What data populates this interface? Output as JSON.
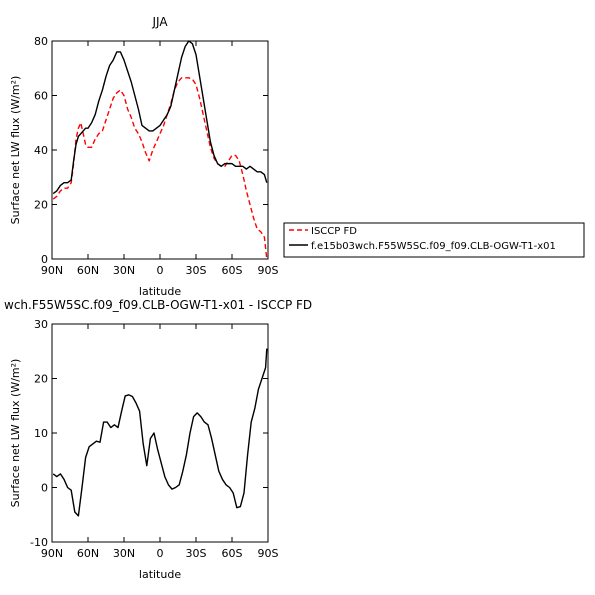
{
  "chart_data": [
    {
      "type": "line",
      "title": "JJA",
      "xlabel": "latitude",
      "ylabel": "Surface net LW flux (W/m²)",
      "xlim": [
        90,
        -90
      ],
      "ylim": [
        0,
        80
      ],
      "xticks": [
        90,
        60,
        30,
        0,
        -30,
        -60,
        -90
      ],
      "xtick_labels": [
        "90N",
        "60N",
        "30N",
        "0",
        "30S",
        "60S",
        "90S"
      ],
      "yticks": [
        0,
        20,
        40,
        60,
        80
      ],
      "legend": "right",
      "series": [
        {
          "name": "ISCCP FD",
          "color": "#ff0000",
          "dash": true,
          "x": [
            89,
            86,
            83,
            80,
            77,
            74,
            72,
            70,
            68,
            66,
            64,
            62,
            60,
            57,
            54,
            51,
            48,
            45,
            42,
            39,
            36,
            33,
            30,
            27,
            24,
            21,
            18,
            15,
            12,
            9,
            6,
            3,
            0,
            -3,
            -6,
            -9,
            -12,
            -15,
            -18,
            -21,
            -24,
            -27,
            -30,
            -33,
            -36,
            -39,
            -42,
            -45,
            -48,
            -51,
            -54,
            -57,
            -60,
            -63,
            -66,
            -69,
            -72,
            -75,
            -78,
            -81,
            -84,
            -87,
            -89
          ],
          "y": [
            22,
            23,
            25,
            26,
            26,
            28,
            35,
            44,
            48,
            50,
            46,
            42,
            41,
            41,
            44,
            46,
            47,
            51,
            55,
            59,
            61,
            62,
            60,
            55,
            52,
            48,
            46,
            43,
            39,
            36,
            40,
            43,
            46,
            49,
            53,
            57,
            62,
            65,
            66.5,
            66.5,
            66.5,
            66,
            64,
            59,
            53,
            47,
            41,
            37,
            35,
            34,
            34,
            36,
            38,
            38,
            36,
            31,
            25,
            20,
            15,
            11,
            10,
            8,
            0
          ]
        },
        {
          "name": "f.e15b03wch.F55W5SC.f09_f09.CLB-OGW-T1-x01",
          "color": "#000000",
          "dash": false,
          "x": [
            89,
            86,
            83,
            80,
            77,
            74,
            72,
            70,
            68,
            66,
            64,
            62,
            60,
            57,
            54,
            51,
            48,
            45,
            42,
            39,
            36,
            33,
            30,
            27,
            24,
            21,
            18,
            15,
            12,
            9,
            6,
            3,
            0,
            -3,
            -6,
            -9,
            -12,
            -15,
            -18,
            -21,
            -24,
            -27,
            -30,
            -33,
            -36,
            -39,
            -42,
            -45,
            -48,
            -51,
            -54,
            -57,
            -60,
            -63,
            -66,
            -69,
            -72,
            -75,
            -78,
            -81,
            -84,
            -87,
            -89
          ],
          "y": [
            24,
            25,
            27,
            28,
            28,
            29,
            36,
            42,
            45,
            46,
            47,
            48,
            48,
            50,
            53,
            58,
            62,
            67,
            71,
            73,
            76,
            76,
            73,
            69,
            65,
            60,
            55,
            49,
            48,
            47,
            47,
            48,
            49,
            51,
            53,
            56,
            62,
            68,
            74,
            78,
            80,
            79,
            75,
            67,
            59,
            51,
            43,
            38,
            35,
            34,
            35,
            35,
            35,
            34,
            34,
            34,
            33,
            34,
            33,
            32,
            32,
            31,
            28
          ]
        }
      ]
    },
    {
      "type": "line",
      "title": "wch.F55W5SC.f09_f09.CLB-OGW-T1-x01 - ISCCP FD",
      "xlabel": "latitude",
      "ylabel": "Surface net LW flux (W/m²)",
      "xlim": [
        90,
        -90
      ],
      "ylim": [
        -10,
        30
      ],
      "xticks": [
        90,
        60,
        30,
        0,
        -30,
        -60,
        -90
      ],
      "xtick_labels": [
        "90N",
        "60N",
        "30N",
        "0",
        "30S",
        "60S",
        "90S"
      ],
      "yticks": [
        -10,
        0,
        10,
        20,
        30
      ],
      "series": [
        {
          "color": "#000000",
          "dash": false,
          "x": [
            89,
            86,
            83,
            80,
            77,
            74,
            71,
            68,
            65,
            62,
            59,
            56,
            53,
            50,
            47,
            44,
            41,
            38,
            35,
            32,
            29,
            26,
            23,
            20,
            17,
            14,
            11,
            8,
            5,
            2,
            -1,
            -4,
            -7,
            -10,
            -13,
            -16,
            -19,
            -22,
            -25,
            -28,
            -31,
            -34,
            -37,
            -40,
            -43,
            -46,
            -49,
            -52,
            -55,
            -58,
            -61,
            -64,
            -67,
            -70,
            -73,
            -76,
            -79,
            -82,
            -85,
            -88,
            -89
          ],
          "y": [
            2.5,
            2,
            2.5,
            1.5,
            0,
            -0.5,
            -4.5,
            -5.2,
            0,
            5.5,
            7.5,
            8,
            8.5,
            8.3,
            12,
            12,
            11,
            11.5,
            11,
            14,
            16.8,
            17,
            16.7,
            15.5,
            14,
            8,
            4,
            9,
            10,
            7,
            4.5,
            2,
            0.5,
            -0.3,
            0,
            0.5,
            3,
            6,
            10,
            13,
            13.7,
            13,
            12,
            11.5,
            9,
            6,
            3,
            1.5,
            0.5,
            0,
            -1,
            -3.7,
            -3.5,
            -1,
            6,
            12,
            14.5,
            18,
            20,
            22,
            25.5
          ]
        }
      ]
    }
  ]
}
